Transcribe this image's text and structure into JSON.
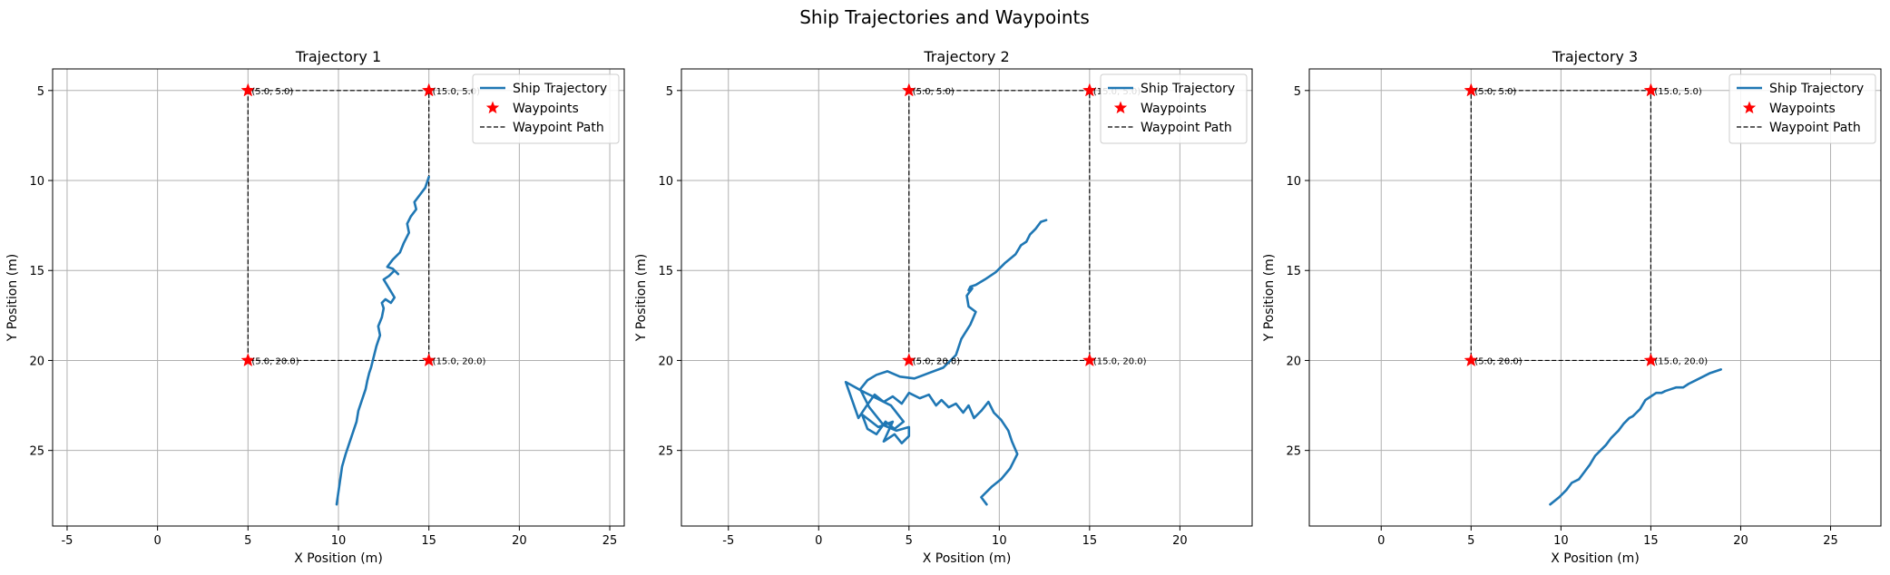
{
  "figure_title": "Ship Trajectories and Waypoints",
  "colors": {
    "trajectory": "#1f77b4",
    "waypoint": "#ff0000",
    "waypoint_path": "#000000",
    "grid": "#b0b0b0"
  },
  "legend_labels": [
    "Ship Trajectory",
    "Waypoints",
    "Waypoint Path"
  ],
  "chart_data": [
    {
      "type": "line",
      "title": "Trajectory 1",
      "xlabel": "X Position (m)",
      "ylabel": "Y Position (m)",
      "xlim": [
        -5.8,
        25.8
      ],
      "ylim": [
        29.2,
        3.8
      ],
      "y_inverted": true,
      "xticks": [
        -5,
        0,
        5,
        10,
        15,
        20,
        25
      ],
      "yticks": [
        5,
        10,
        15,
        20,
        25
      ],
      "grid": true,
      "legend": "top-right",
      "waypoints": [
        [
          5,
          5
        ],
        [
          15,
          5
        ],
        [
          15,
          20
        ],
        [
          5,
          20
        ]
      ],
      "waypoint_labels": [
        "(5.0, 5.0)",
        "(15.0, 5.0)",
        "(15.0, 20.0)",
        "(5.0, 20.0)"
      ],
      "series": [
        {
          "name": "Ship Trajectory",
          "x": [
            9.9,
            10.0,
            10.1,
            10.2,
            10.4,
            10.6,
            10.8,
            11.0,
            11.1,
            11.3,
            11.5,
            11.6,
            11.7,
            11.8,
            11.9,
            12.0,
            12.1,
            12.3,
            12.2,
            12.4,
            12.5,
            12.4,
            12.6,
            12.9,
            13.1,
            12.8,
            12.5,
            12.8,
            13.1,
            13.3,
            13.0,
            12.7,
            13.0,
            13.4,
            13.6,
            13.9,
            13.8,
            14.0,
            14.3,
            14.2,
            14.5,
            14.8,
            15.0
          ],
          "y": [
            28.0,
            27.3,
            26.6,
            25.9,
            25.2,
            24.6,
            24.0,
            23.4,
            22.8,
            22.2,
            21.6,
            21.1,
            20.7,
            20.4,
            20.0,
            19.6,
            19.2,
            18.6,
            18.1,
            17.6,
            17.1,
            16.8,
            16.6,
            16.8,
            16.5,
            16.0,
            15.5,
            15.3,
            15.0,
            15.2,
            14.9,
            14.8,
            14.4,
            14.0,
            13.5,
            12.9,
            12.4,
            12.0,
            11.6,
            11.2,
            10.8,
            10.4,
            9.8
          ]
        }
      ]
    },
    {
      "type": "line",
      "title": "Trajectory 2",
      "xlabel": "X Position (m)",
      "ylabel": "Y Position (m)",
      "xlim": [
        -7.6,
        24.0
      ],
      "ylim": [
        29.2,
        3.8
      ],
      "y_inverted": true,
      "xticks": [
        -5,
        0,
        5,
        10,
        15,
        20
      ],
      "yticks": [
        5,
        10,
        15,
        20,
        25
      ],
      "grid": true,
      "legend": "top-right",
      "waypoints": [
        [
          5,
          5
        ],
        [
          15,
          5
        ],
        [
          15,
          20
        ],
        [
          5,
          20
        ]
      ],
      "waypoint_labels": [
        "(5.0, 5.0)",
        "(15.0, 5.0)",
        "(15.0, 20.0)",
        "(5.0, 20.0)"
      ],
      "series": [
        {
          "name": "Ship Trajectory",
          "x": [
            9.3,
            9.0,
            9.6,
            10.1,
            10.6,
            11.0,
            10.7,
            10.5,
            10.1,
            9.7,
            9.4,
            9.0,
            8.6,
            8.3,
            8.0,
            7.6,
            7.2,
            6.8,
            6.5,
            6.1,
            5.6,
            5.0,
            4.6,
            4.1,
            3.6,
            3.1,
            2.6,
            2.2,
            1.5,
            2.4,
            3.2,
            4.0,
            4.7,
            4.2,
            3.7,
            3.2,
            2.7,
            2.4,
            3.3,
            4.1,
            3.6,
            4.2,
            4.6,
            5.0,
            5.0,
            4.3,
            3.6,
            2.8,
            2.3,
            2.7,
            3.2,
            3.8,
            4.5,
            5.3,
            6.1,
            6.9,
            7.6,
            7.9,
            8.4,
            8.7,
            8.3,
            8.2,
            8.5,
            8.3,
            8.4,
            8.7,
            9.2,
            9.8,
            10.3,
            10.9,
            11.2,
            11.5,
            11.7,
            12.0,
            12.3,
            12.6
          ],
          "y": [
            28.0,
            27.6,
            27.0,
            26.6,
            26.0,
            25.2,
            24.5,
            23.9,
            23.3,
            22.9,
            22.3,
            22.8,
            23.2,
            22.5,
            22.9,
            22.4,
            22.6,
            22.2,
            22.5,
            21.9,
            22.1,
            21.8,
            22.4,
            22.0,
            22.3,
            21.9,
            22.6,
            23.2,
            21.2,
            21.7,
            22.1,
            22.5,
            23.4,
            23.8,
            23.4,
            24.1,
            23.8,
            23.0,
            23.7,
            23.4,
            24.5,
            24.1,
            24.6,
            24.2,
            23.7,
            23.9,
            23.6,
            22.6,
            21.6,
            21.1,
            20.8,
            20.6,
            20.9,
            21.0,
            20.7,
            20.4,
            19.7,
            18.8,
            18.0,
            17.3,
            17.0,
            16.4,
            16.0,
            16.1,
            15.9,
            15.8,
            15.5,
            15.1,
            14.6,
            14.1,
            13.6,
            13.4,
            13.0,
            12.7,
            12.3,
            12.2
          ]
        }
      ]
    },
    {
      "type": "line",
      "title": "Trajectory 3",
      "xlabel": "X Position (m)",
      "ylabel": "Y Position (m)",
      "xlim": [
        -4.0,
        27.8
      ],
      "ylim": [
        29.2,
        3.8
      ],
      "y_inverted": true,
      "xticks": [
        0,
        5,
        10,
        15,
        20,
        25
      ],
      "yticks": [
        5,
        10,
        15,
        20,
        25
      ],
      "grid": true,
      "legend": "top-right",
      "waypoints": [
        [
          5,
          5
        ],
        [
          15,
          5
        ],
        [
          15,
          20
        ],
        [
          5,
          20
        ]
      ],
      "waypoint_labels": [
        "(5.0, 5.0)",
        "(15.0, 5.0)",
        "(15.0, 20.0)",
        "(5.0, 20.0)"
      ],
      "series": [
        {
          "name": "Ship Trajectory",
          "x": [
            9.4,
            9.9,
            10.3,
            10.6,
            11.0,
            11.3,
            11.6,
            11.9,
            12.2,
            12.5,
            12.8,
            13.2,
            13.5,
            13.8,
            14.0,
            14.2,
            14.4,
            14.7,
            15.0,
            15.3,
            15.6,
            15.8,
            16.1,
            16.4,
            16.8,
            17.1,
            17.5,
            17.9,
            18.3,
            18.6,
            18.9
          ],
          "y": [
            28.0,
            27.6,
            27.2,
            26.8,
            26.6,
            26.2,
            25.8,
            25.3,
            25.0,
            24.7,
            24.3,
            23.9,
            23.5,
            23.2,
            23.1,
            22.9,
            22.7,
            22.2,
            22.0,
            21.8,
            21.8,
            21.7,
            21.6,
            21.5,
            21.5,
            21.3,
            21.1,
            20.9,
            20.7,
            20.6,
            20.5
          ]
        }
      ]
    }
  ]
}
